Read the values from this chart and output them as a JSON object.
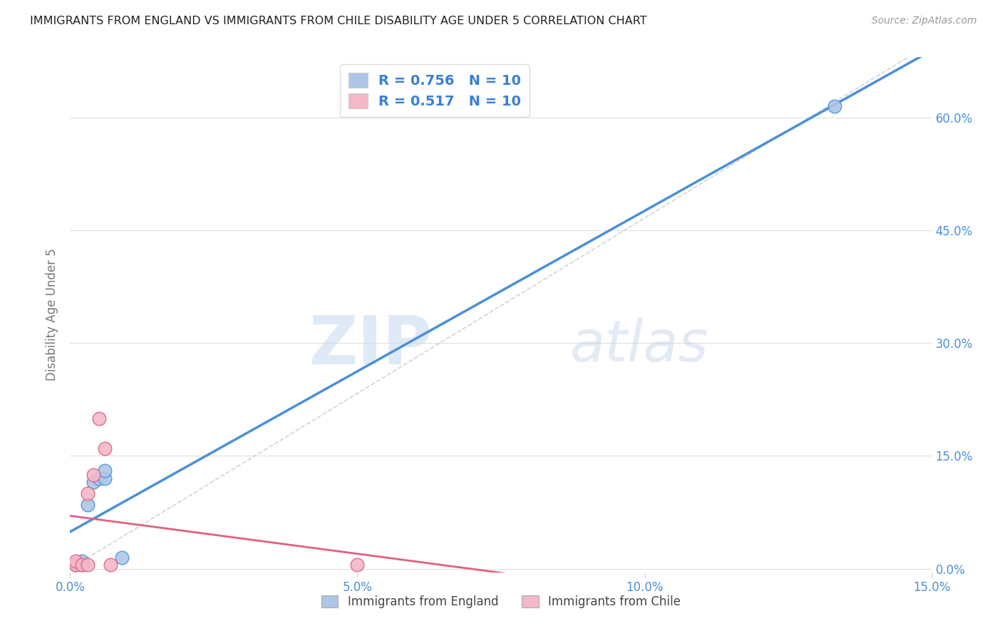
{
  "title": "IMMIGRANTS FROM ENGLAND VS IMMIGRANTS FROM CHILE DISABILITY AGE UNDER 5 CORRELATION CHART",
  "source": "Source: ZipAtlas.com",
  "ylabel": "Disability Age Under 5",
  "xlim": [
    0.0,
    0.15
  ],
  "ylim": [
    -0.005,
    0.68
  ],
  "xticks": [
    0.0,
    0.05,
    0.1,
    0.15
  ],
  "xtick_labels": [
    "0.0%",
    "5.0%",
    "10.0%",
    "15.0%"
  ],
  "yticks_right": [
    0.0,
    0.15,
    0.3,
    0.45,
    0.6
  ],
  "ytick_labels_right": [
    "0.0%",
    "15.0%",
    "30.0%",
    "45.0%",
    "60.0%"
  ],
  "england_x": [
    0.001,
    0.002,
    0.002,
    0.003,
    0.004,
    0.005,
    0.006,
    0.006,
    0.009,
    0.133
  ],
  "england_y": [
    0.005,
    0.005,
    0.01,
    0.085,
    0.115,
    0.12,
    0.12,
    0.13,
    0.015,
    0.615
  ],
  "chile_x": [
    0.001,
    0.001,
    0.002,
    0.003,
    0.003,
    0.004,
    0.005,
    0.006,
    0.007,
    0.05
  ],
  "chile_y": [
    0.005,
    0.01,
    0.005,
    0.005,
    0.1,
    0.125,
    0.2,
    0.16,
    0.005,
    0.005
  ],
  "england_color": "#adc6e8",
  "chile_color": "#f4b8c8",
  "england_line_color": "#4a90d9",
  "chile_line_color": "#e06080",
  "diag_color": "#c8c8c8",
  "R_england": 0.756,
  "N_england": 10,
  "R_chile": 0.517,
  "N_chile": 10,
  "legend_england": "Immigrants from England",
  "legend_chile": "Immigrants from Chile",
  "watermark_zip": "ZIP",
  "watermark_atlas": "atlas",
  "background_color": "#ffffff",
  "grid_color": "#e0e0e0",
  "title_color": "#222222",
  "axis_label_color": "#777777",
  "right_axis_color": "#4a90d9",
  "legend_R_color": "#3a7fd5",
  "scatter_size": 180
}
